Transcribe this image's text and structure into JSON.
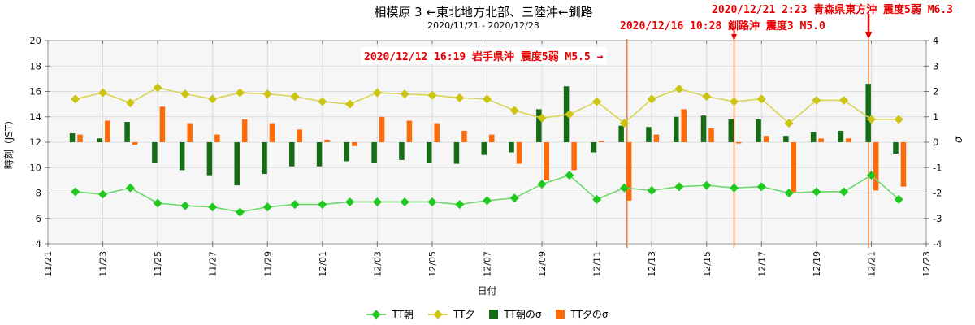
{
  "header": {
    "title": "相模原 3 ←東北地方北部、三陸沖←釧路",
    "subtitle": "2020/11/21 - 2020/12/23"
  },
  "annotations": [
    {
      "id": "iwate",
      "text": "2020/12/12 16:19 岩手県沖 震度5弱 M5.5 →",
      "event_day": 21.1,
      "arrow": "none",
      "boxed": true
    },
    {
      "id": "kushiro",
      "text": "2020/12/16 10:28 釧路沖 震度3 M5.0",
      "event_day": 25.0,
      "arrow": "down-small",
      "boxed": false
    },
    {
      "id": "aomori",
      "text": "2020/12/21 2:23 青森県東方沖 震度5弱 M6.3",
      "event_day": 29.9,
      "arrow": "down-large",
      "boxed": false
    }
  ],
  "legend": {
    "items": [
      {
        "label": "TT朝",
        "marker": "line-diamond",
        "color": "#1ec81e",
        "line_color": "#6cd96c"
      },
      {
        "label": "TT夕",
        "marker": "line-diamond",
        "color": "#ccc411",
        "line_color": "#d8d455"
      },
      {
        "label": "TT朝のσ",
        "marker": "square",
        "color": "#166b16",
        "line_color": "#166b16"
      },
      {
        "label": "TT夕のσ",
        "marker": "square",
        "color": "#fd6a0a",
        "line_color": "#fd6a0a"
      }
    ]
  },
  "colors": {
    "annotation_red": "#e60000",
    "event_line": "#f98436",
    "grid": "#dcdcdc",
    "border": "#999999",
    "tick": "#777777",
    "plot_bg": "#f6f6f6",
    "text": "#111111"
  },
  "chart_data": {
    "type": "line+bar",
    "title": "相模原 3 ←東北地方北部、三陸沖←釧路",
    "subtitle": "2020/11/21 - 2020/12/23",
    "x_axis": {
      "label": "日付",
      "start": "11/21",
      "end": "12/23",
      "tick_step_days": 2,
      "ticklabels": [
        "11/21",
        "11/23",
        "11/25",
        "11/27",
        "11/29",
        "12/01",
        "12/03",
        "12/05",
        "12/07",
        "12/09",
        "12/11",
        "12/13",
        "12/15",
        "12/17",
        "12/19",
        "12/21",
        "12/23"
      ]
    },
    "left_axis": {
      "label": "時刻（JST）",
      "min": 4,
      "max": 20,
      "tick_step": 2
    },
    "right_axis": {
      "label": "σ",
      "min": -4,
      "max": 4,
      "tick_step": 1
    },
    "grid": true,
    "legend_position": "bottom-center",
    "categories": [
      "11/22",
      "11/23",
      "11/24",
      "11/25",
      "11/26",
      "11/27",
      "11/28",
      "11/29",
      "11/30",
      "12/01",
      "12/02",
      "12/03",
      "12/04",
      "12/05",
      "12/06",
      "12/07",
      "12/08",
      "12/09",
      "12/10",
      "12/11",
      "12/12",
      "12/13",
      "12/14",
      "12/15",
      "12/16",
      "12/17",
      "12/18",
      "12/19",
      "12/20",
      "12/21",
      "12/22"
    ],
    "series": [
      {
        "name": "TT夕",
        "type": "line",
        "axis": "left",
        "color": "#ccc411",
        "line_color": "#d8d455",
        "values": [
          15.4,
          15.9,
          15.1,
          16.3,
          15.8,
          15.4,
          15.9,
          15.8,
          15.6,
          15.2,
          15.0,
          15.9,
          15.8,
          15.7,
          15.5,
          15.4,
          14.5,
          13.9,
          14.2,
          15.2,
          13.5,
          15.4,
          16.2,
          15.6,
          15.2,
          15.4,
          13.5,
          15.3,
          15.3,
          13.8,
          13.8
        ]
      },
      {
        "name": "TT朝",
        "type": "line",
        "axis": "left",
        "color": "#1ec81e",
        "line_color": "#6cd96c",
        "values": [
          8.1,
          7.9,
          8.4,
          7.2,
          7.0,
          6.9,
          6.5,
          6.9,
          7.1,
          7.1,
          7.3,
          7.3,
          7.3,
          7.3,
          7.1,
          7.4,
          7.6,
          8.7,
          9.4,
          7.5,
          8.4,
          8.2,
          8.5,
          8.6,
          8.4,
          8.5,
          8.0,
          8.1,
          8.1,
          9.4,
          7.5
        ]
      },
      {
        "name": "TT朝のσ",
        "type": "bar",
        "axis": "right",
        "color": "#166b16",
        "values": [
          0.35,
          0.15,
          0.8,
          -0.8,
          -1.1,
          -1.3,
          -1.7,
          -1.25,
          -0.95,
          -0.95,
          -0.75,
          -0.8,
          -0.7,
          -0.8,
          -0.85,
          -0.5,
          -0.4,
          1.3,
          2.2,
          -0.4,
          0.65,
          0.6,
          1.0,
          1.05,
          0.9,
          0.9,
          0.25,
          0.4,
          0.45,
          2.3,
          -0.45
        ]
      },
      {
        "name": "TT夕のσ",
        "type": "bar",
        "axis": "right",
        "color": "#fd6a0a",
        "values": [
          0.3,
          0.85,
          -0.1,
          1.4,
          0.75,
          0.3,
          0.9,
          0.75,
          0.5,
          0.1,
          -0.15,
          1.0,
          0.85,
          0.75,
          0.45,
          0.3,
          -0.85,
          -1.5,
          -1.1,
          0.05,
          -2.3,
          0.3,
          1.3,
          0.55,
          -0.05,
          0.25,
          -2.0,
          0.15,
          0.15,
          -1.9,
          -1.75
        ]
      }
    ],
    "event_lines": {
      "days_from_start": [
        21.1,
        25.0,
        29.9
      ],
      "color": "#f98436"
    }
  }
}
